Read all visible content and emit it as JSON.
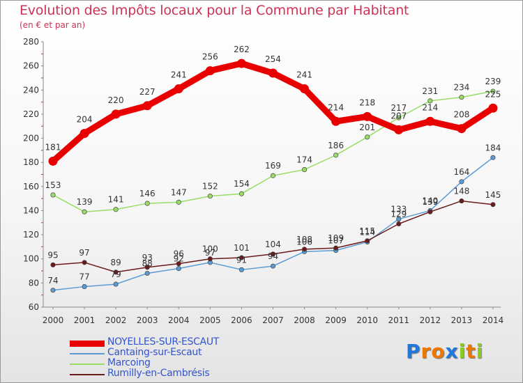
{
  "chart_data": {
    "type": "line",
    "title": "Evolution des Impôts locaux pour la Commune par Habitant",
    "subtitle": "(en € et par an)",
    "x": [
      "2000",
      "2001",
      "2002",
      "2003",
      "2004",
      "2005",
      "2006",
      "2007",
      "2008",
      "2009",
      "2010",
      "2011",
      "2012",
      "2013",
      "2014"
    ],
    "yticks": [
      "60",
      "80",
      "100",
      "120",
      "140",
      "160",
      "180",
      "200",
      "220",
      "240",
      "260",
      "280"
    ],
    "ylim": [
      60,
      280
    ],
    "grid": false,
    "legend_position": "bottom-left",
    "series": [
      {
        "name": "NOYELLES-SUR-ESCAUT",
        "color": "#e80000",
        "values": [
          181,
          204,
          220,
          227,
          241,
          256,
          262,
          254,
          241,
          214,
          218,
          207,
          214,
          208,
          225
        ],
        "labels": [
          "181",
          "204",
          "220",
          "227",
          "241",
          "256",
          "262",
          "254",
          "241",
          "214",
          "218",
          "207",
          "214",
          "208",
          "225"
        ]
      },
      {
        "name": "Cantaing-sur-Escaut",
        "color": "#5b9bd5",
        "values": [
          74,
          77,
          79,
          88,
          92,
          97,
          91,
          94,
          106,
          107,
          114,
          133,
          140,
          164,
          184
        ],
        "labels": [
          "74",
          "77",
          "79",
          "88",
          "92",
          "97",
          "91",
          "94",
          "106",
          "107",
          "114",
          "133",
          "140",
          "164",
          "184"
        ]
      },
      {
        "name": "Marcoing",
        "color": "#99dd66",
        "values": [
          153,
          139,
          141,
          146,
          147,
          152,
          154,
          169,
          174,
          186,
          201,
          217,
          231,
          234,
          239
        ],
        "labels": [
          "153",
          "139",
          "141",
          "146",
          "147",
          "152",
          "154",
          "169",
          "174",
          "186",
          "201",
          "217",
          "231",
          "234",
          "239"
        ]
      },
      {
        "name": "Rumilly-en-Cambrésis",
        "color": "#6b1a1a",
        "values": [
          95,
          97,
          89,
          93,
          96,
          100,
          101,
          104,
          108,
          109,
          115,
          129,
          139,
          148,
          145
        ],
        "labels": [
          "95",
          "97",
          "89",
          "93",
          "96",
          "100",
          "101",
          "104",
          "108",
          "109",
          "115",
          "129",
          "139",
          "148",
          "145"
        ]
      }
    ]
  },
  "logo": {
    "letters": [
      "P",
      "r",
      "o",
      "x",
      "i",
      "t",
      "i"
    ],
    "colors": [
      "#2277dd",
      "#ee7700",
      "#ee7700",
      "#2277dd",
      "#88cc22",
      "#ee7700",
      "#88cc22"
    ]
  }
}
